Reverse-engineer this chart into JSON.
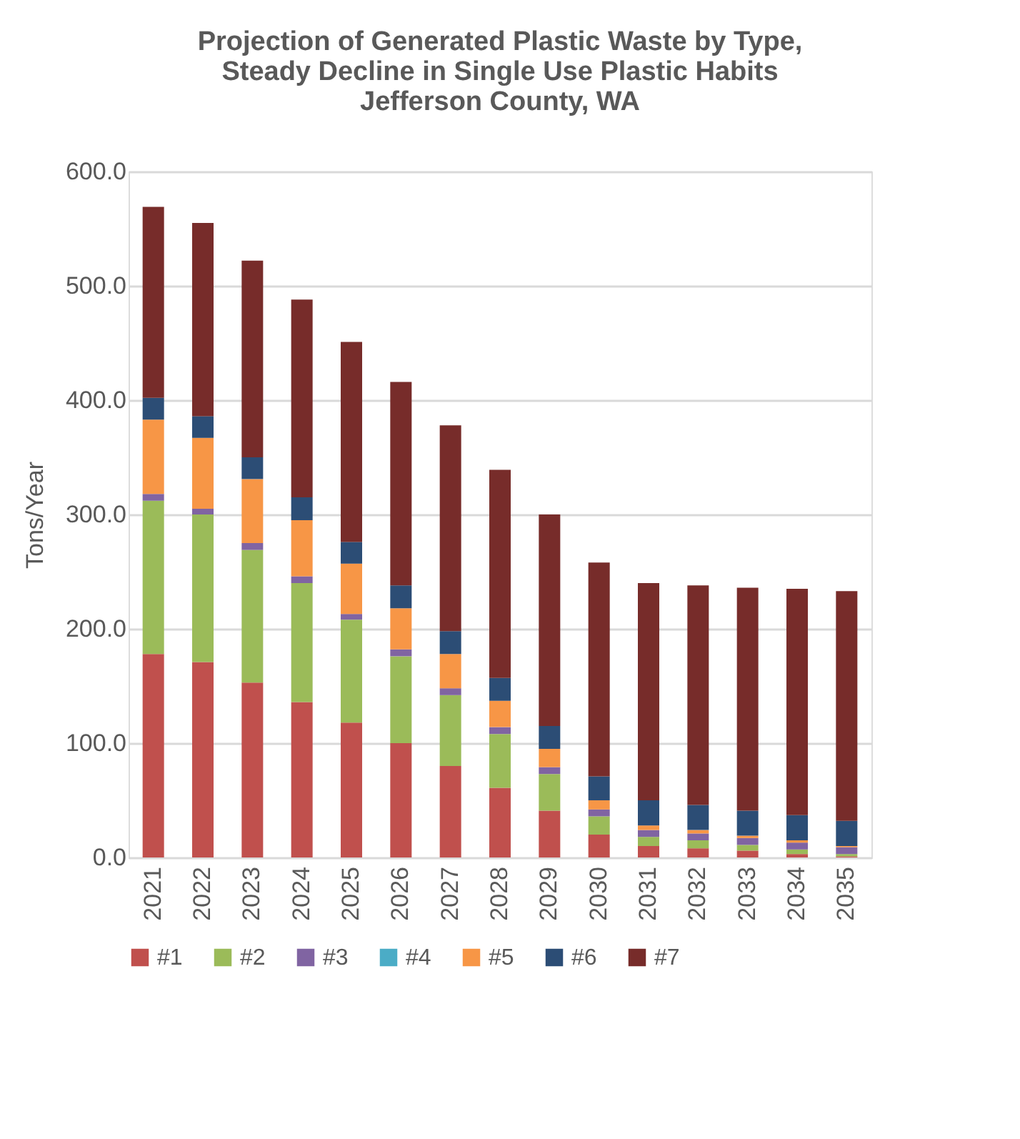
{
  "chart_data": {
    "type": "bar",
    "stacked": true,
    "title": [
      "Projection of Generated Plastic Waste by Type,",
      "Steady Decline in Single Use Plastic Habits",
      "Jefferson County, WA"
    ],
    "ylabel": "Tons/Year",
    "categories": [
      "2021",
      "2022",
      "2023",
      "2024",
      "2025",
      "2026",
      "2027",
      "2028",
      "2029",
      "2030",
      "2031",
      "2032",
      "2033",
      "2034",
      "2035"
    ],
    "series": [
      {
        "name": "#1",
        "color": "#c0504d",
        "values": [
          178,
          171,
          153,
          136,
          118,
          100,
          80,
          61,
          41,
          20,
          10,
          8,
          6,
          3,
          1
        ]
      },
      {
        "name": "#2",
        "color": "#9bbb59",
        "values": [
          134,
          129,
          116,
          104,
          90,
          76,
          62,
          47,
          32,
          16,
          8,
          7,
          5,
          4,
          2
        ]
      },
      {
        "name": "#3",
        "color": "#8064a2",
        "values": [
          6,
          5,
          6,
          6,
          5,
          6,
          6,
          6,
          6,
          6,
          6,
          6,
          6,
          6,
          6
        ]
      },
      {
        "name": "#4",
        "color": "#4bacc6",
        "values": [
          0,
          0,
          0,
          0,
          0,
          0,
          0,
          0,
          0,
          0,
          0,
          0,
          0,
          0,
          0
        ]
      },
      {
        "name": "#5",
        "color": "#f79646",
        "values": [
          65,
          62,
          56,
          49,
          44,
          36,
          30,
          23,
          16,
          8,
          4,
          3,
          2,
          2,
          1
        ]
      },
      {
        "name": "#6",
        "color": "#2c4d75",
        "values": [
          19,
          19,
          19,
          20,
          19,
          20,
          20,
          20,
          20,
          21,
          22,
          22,
          22,
          22,
          22
        ]
      },
      {
        "name": "#7",
        "color": "#772c2a",
        "values": [
          167,
          169,
          172,
          173,
          175,
          178,
          180,
          182,
          185,
          187,
          190,
          192,
          195,
          198,
          201
        ]
      }
    ],
    "ylim": [
      0,
      600
    ],
    "yticks": [
      {
        "value": 0,
        "label": "0.0"
      },
      {
        "value": 100,
        "label": "100.0"
      },
      {
        "value": 200,
        "label": "200.0"
      },
      {
        "value": 300,
        "label": "300.0"
      },
      {
        "value": 400,
        "label": "400.0"
      },
      {
        "value": 500,
        "label": "500.0"
      },
      {
        "value": 600,
        "label": "600.0"
      }
    ],
    "grid": "y",
    "legend": "bottom"
  }
}
